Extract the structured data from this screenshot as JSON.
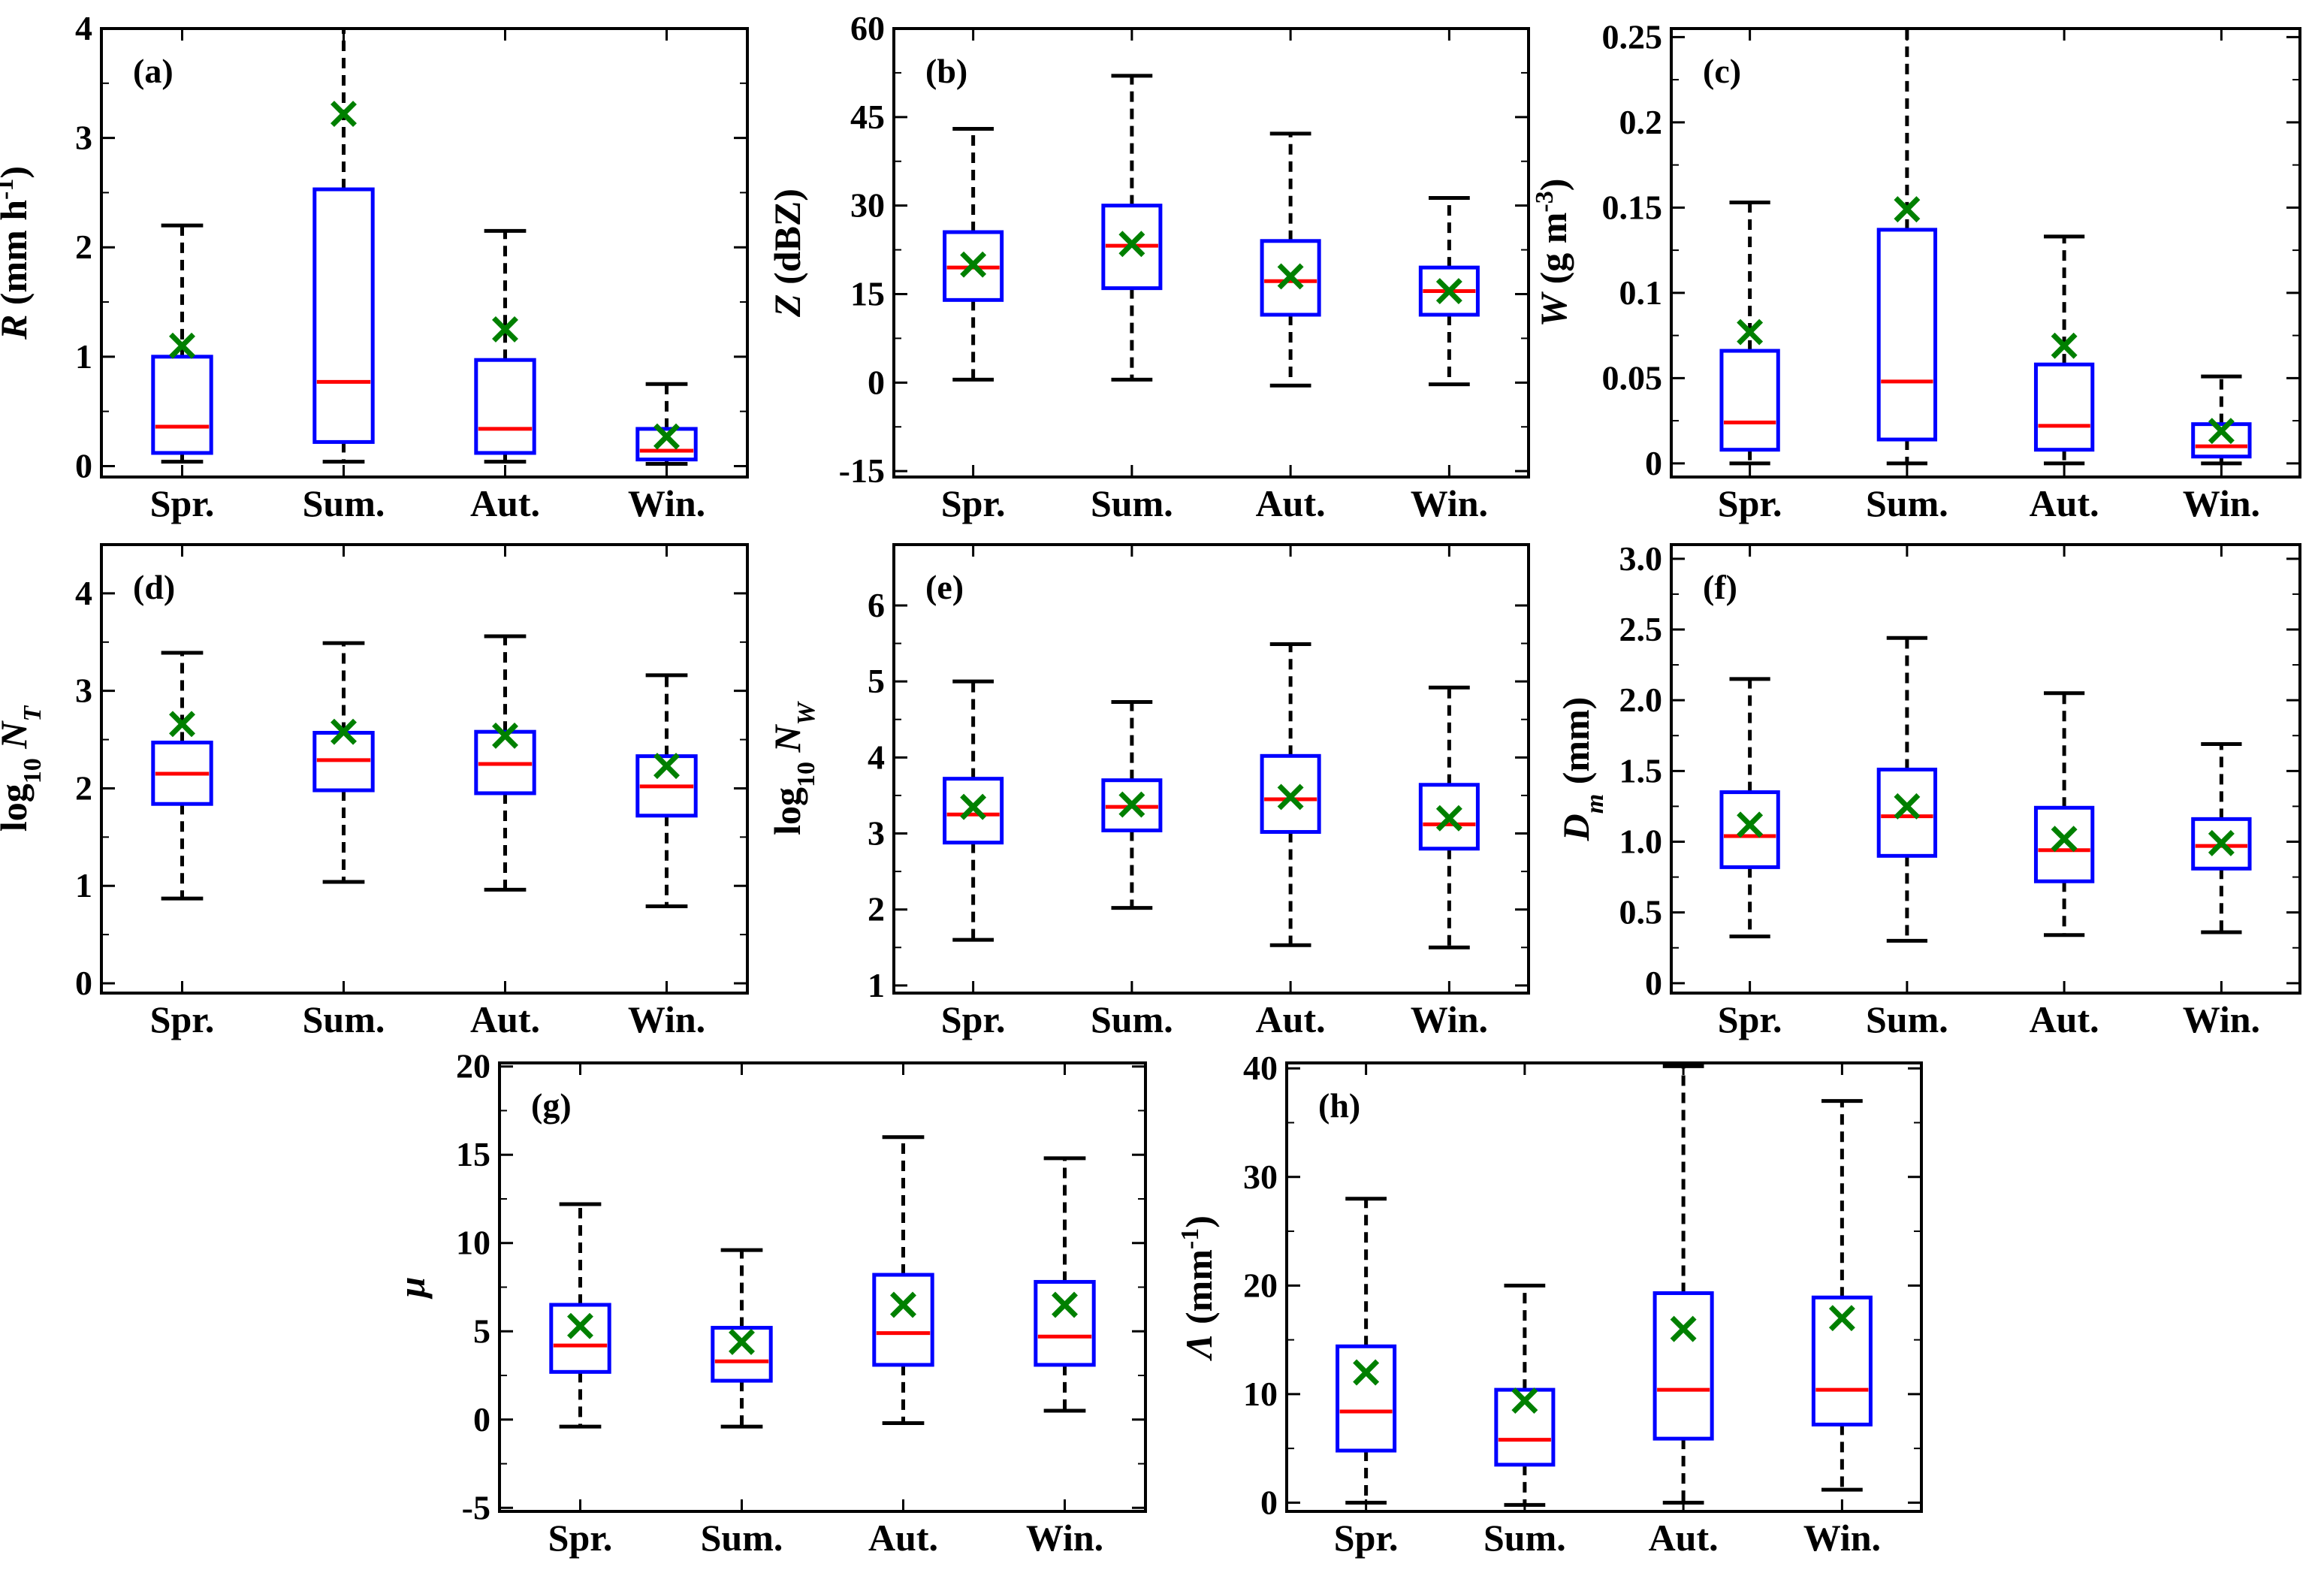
{
  "colors": {
    "box": "#0000ff",
    "median": "#ff0000",
    "mean": "#008000",
    "whisker": "#000000",
    "frame": "#000000"
  },
  "chart_data": [
    {
      "id": "a",
      "type": "box",
      "panel_label": "(a)",
      "ylabel": {
        "sym": "R",
        "text": " (mm h",
        "sup": "-1",
        "after": ")"
      },
      "ylim": [
        -0.1,
        4
      ],
      "yticks": [
        0,
        1,
        2,
        3,
        4
      ],
      "ytick_labels": [
        "0",
        "1",
        "2",
        "3",
        "4"
      ],
      "categories": [
        "Spr.",
        "Sum.",
        "Aut.",
        "Win."
      ],
      "boxes": [
        {
          "whislo": 0.04,
          "q1": 0.12,
          "med": 0.36,
          "q3": 1.0,
          "whishi": 2.2,
          "mean": 1.1
        },
        {
          "whislo": 0.04,
          "q1": 0.22,
          "med": 0.77,
          "q3": 2.53,
          "whishi": 4.0,
          "mean": 3.22
        },
        {
          "whislo": 0.04,
          "q1": 0.12,
          "med": 0.34,
          "q3": 0.97,
          "whishi": 2.15,
          "mean": 1.25
        },
        {
          "whislo": 0.02,
          "q1": 0.06,
          "med": 0.14,
          "q3": 0.34,
          "whishi": 0.75,
          "mean": 0.27
        }
      ]
    },
    {
      "id": "b",
      "type": "box",
      "panel_label": "(b)",
      "ylabel": {
        "sym": "Z",
        "text": " (dBZ)",
        "sup": "",
        "after": ""
      },
      "ylim": [
        -16,
        60
      ],
      "yticks": [
        -15,
        0,
        15,
        30,
        45,
        60
      ],
      "ytick_labels": [
        "-15",
        "0",
        "15",
        "30",
        "45",
        "60"
      ],
      "categories": [
        "Spr.",
        "Sum.",
        "Aut.",
        "Win."
      ],
      "boxes": [
        {
          "whislo": 0.5,
          "q1": 14,
          "med": 19.5,
          "q3": 25.5,
          "whishi": 43,
          "mean": 20
        },
        {
          "whislo": 0.5,
          "q1": 16,
          "med": 23.2,
          "q3": 30,
          "whishi": 52,
          "mean": 23.5
        },
        {
          "whislo": -0.5,
          "q1": 11.5,
          "med": 17.2,
          "q3": 24,
          "whishi": 42.2,
          "mean": 18
        },
        {
          "whislo": -0.3,
          "q1": 11.5,
          "med": 15.5,
          "q3": 19.5,
          "whishi": 31.3,
          "mean": 15.5
        }
      ]
    },
    {
      "id": "c",
      "type": "box",
      "panel_label": "(c)",
      "ylabel": {
        "sym": "W",
        "text": " (g m",
        "sup": "-3",
        "after": ")"
      },
      "ylim": [
        -0.008,
        0.255
      ],
      "yticks": [
        0,
        0.05,
        0.1,
        0.15,
        0.2,
        0.25
      ],
      "ytick_labels": [
        "0",
        "0.05",
        "0.1",
        "0.15",
        "0.2",
        "0.25"
      ],
      "categories": [
        "Spr.",
        "Sum.",
        "Aut.",
        "Win."
      ],
      "boxes": [
        {
          "whislo": 0.0,
          "q1": 0.008,
          "med": 0.024,
          "q3": 0.066,
          "whishi": 0.153,
          "mean": 0.077
        },
        {
          "whislo": 0.0,
          "q1": 0.014,
          "med": 0.048,
          "q3": 0.137,
          "whishi": 0.255,
          "mean": 0.149
        },
        {
          "whislo": 0.0,
          "q1": 0.008,
          "med": 0.022,
          "q3": 0.058,
          "whishi": 0.133,
          "mean": 0.069
        },
        {
          "whislo": 0.0,
          "q1": 0.004,
          "med": 0.01,
          "q3": 0.023,
          "whishi": 0.051,
          "mean": 0.019
        }
      ]
    },
    {
      "id": "d",
      "type": "box",
      "panel_label": "(d)",
      "ylabel": {
        "pre": "log",
        "sub": "10",
        "sym": "N",
        "symsub": "T"
      },
      "ylim": [
        -0.1,
        4.5
      ],
      "yticks": [
        0,
        1,
        2,
        3,
        4
      ],
      "ytick_labels": [
        "0",
        "1",
        "2",
        "3",
        "4"
      ],
      "categories": [
        "Spr.",
        "Sum.",
        "Aut.",
        "Win."
      ],
      "boxes": [
        {
          "whislo": 0.87,
          "q1": 1.84,
          "med": 2.15,
          "q3": 2.47,
          "whishi": 3.39,
          "mean": 2.66
        },
        {
          "whislo": 1.04,
          "q1": 1.98,
          "med": 2.29,
          "q3": 2.57,
          "whishi": 3.49,
          "mean": 2.58
        },
        {
          "whislo": 0.96,
          "q1": 1.95,
          "med": 2.25,
          "q3": 2.58,
          "whishi": 3.56,
          "mean": 2.54
        },
        {
          "whislo": 0.79,
          "q1": 1.72,
          "med": 2.02,
          "q3": 2.33,
          "whishi": 3.16,
          "mean": 2.23
        }
      ]
    },
    {
      "id": "e",
      "type": "box",
      "panel_label": "(e)",
      "ylabel": {
        "pre": "log",
        "sub": "10",
        "sym": "N",
        "symsub": "W"
      },
      "ylim": [
        0.9,
        6.8
      ],
      "yticks": [
        1,
        2,
        3,
        4,
        5,
        6
      ],
      "ytick_labels": [
        "1",
        "2",
        "3",
        "4",
        "5",
        "6"
      ],
      "categories": [
        "Spr.",
        "Sum.",
        "Aut.",
        "Win."
      ],
      "boxes": [
        {
          "whislo": 1.6,
          "q1": 2.88,
          "med": 3.25,
          "q3": 3.72,
          "whishi": 5.0,
          "mean": 3.35
        },
        {
          "whislo": 2.02,
          "q1": 3.04,
          "med": 3.35,
          "q3": 3.7,
          "whishi": 4.73,
          "mean": 3.38
        },
        {
          "whislo": 1.53,
          "q1": 3.02,
          "med": 3.45,
          "q3": 4.02,
          "whishi": 5.49,
          "mean": 3.48
        },
        {
          "whislo": 1.5,
          "q1": 2.8,
          "med": 3.12,
          "q3": 3.64,
          "whishi": 4.92,
          "mean": 3.2
        }
      ]
    },
    {
      "id": "f",
      "type": "box",
      "panel_label": "(f)",
      "ylabel": {
        "sym": "D",
        "symsub": "m",
        "text": " (mm)"
      },
      "ylim": [
        -0.07,
        3.1
      ],
      "yticks": [
        0,
        0.5,
        1.0,
        1.5,
        2.0,
        2.5,
        3.0
      ],
      "ytick_labels": [
        "0",
        "0.5",
        "1.0",
        "1.5",
        "2.0",
        "2.5",
        "3.0"
      ],
      "categories": [
        "Spr.",
        "Sum.",
        "Aut.",
        "Win."
      ],
      "boxes": [
        {
          "whislo": 0.33,
          "q1": 0.82,
          "med": 1.04,
          "q3": 1.35,
          "whishi": 2.15,
          "mean": 1.12
        },
        {
          "whislo": 0.3,
          "q1": 0.9,
          "med": 1.18,
          "q3": 1.51,
          "whishi": 2.44,
          "mean": 1.25
        },
        {
          "whislo": 0.34,
          "q1": 0.72,
          "med": 0.94,
          "q3": 1.24,
          "whishi": 2.05,
          "mean": 1.02
        },
        {
          "whislo": 0.36,
          "q1": 0.81,
          "med": 0.97,
          "q3": 1.16,
          "whishi": 1.69,
          "mean": 0.99
        }
      ]
    },
    {
      "id": "g",
      "type": "box",
      "panel_label": "(g)",
      "ylabel": {
        "sym": "μ"
      },
      "ylim": [
        -5.2,
        20.2
      ],
      "yticks": [
        -5,
        0,
        5,
        10,
        15,
        20
      ],
      "ytick_labels": [
        "-5",
        "0",
        "5",
        "10",
        "15",
        "20"
      ],
      "categories": [
        "Spr.",
        "Sum.",
        "Aut.",
        "Win."
      ],
      "boxes": [
        {
          "whislo": -0.4,
          "q1": 2.7,
          "med": 4.2,
          "q3": 6.5,
          "whishi": 12.2,
          "mean": 5.3
        },
        {
          "whislo": -0.4,
          "q1": 2.2,
          "med": 3.3,
          "q3": 5.2,
          "whishi": 9.6,
          "mean": 4.4
        },
        {
          "whislo": -0.2,
          "q1": 3.1,
          "med": 4.9,
          "q3": 8.2,
          "whishi": 16.0,
          "mean": 6.5
        },
        {
          "whislo": 0.5,
          "q1": 3.1,
          "med": 4.7,
          "q3": 7.8,
          "whishi": 14.8,
          "mean": 6.5
        }
      ]
    },
    {
      "id": "h",
      "type": "box",
      "panel_label": "(h)",
      "ylabel": {
        "sym": "Λ",
        "text": " (mm",
        "sup": "-1",
        "after": ")"
      },
      "ylim": [
        -0.8,
        40.5
      ],
      "yticks": [
        0,
        10,
        20,
        30,
        40
      ],
      "ytick_labels": [
        "0",
        "10",
        "20",
        "30",
        "40"
      ],
      "categories": [
        "Spr.",
        "Sum.",
        "Aut.",
        "Win."
      ],
      "boxes": [
        {
          "whislo": 0.0,
          "q1": 4.8,
          "med": 8.4,
          "q3": 14.4,
          "whishi": 28.0,
          "mean": 12.0
        },
        {
          "whislo": -0.2,
          "q1": 3.5,
          "med": 5.8,
          "q3": 10.4,
          "whishi": 20.0,
          "mean": 9.4
        },
        {
          "whislo": 0.0,
          "q1": 5.9,
          "med": 10.4,
          "q3": 19.3,
          "whishi": 40.2,
          "mean": 16.0
        },
        {
          "whislo": 1.2,
          "q1": 7.2,
          "med": 10.4,
          "q3": 18.9,
          "whishi": 37.0,
          "mean": 17.0
        }
      ]
    }
  ]
}
